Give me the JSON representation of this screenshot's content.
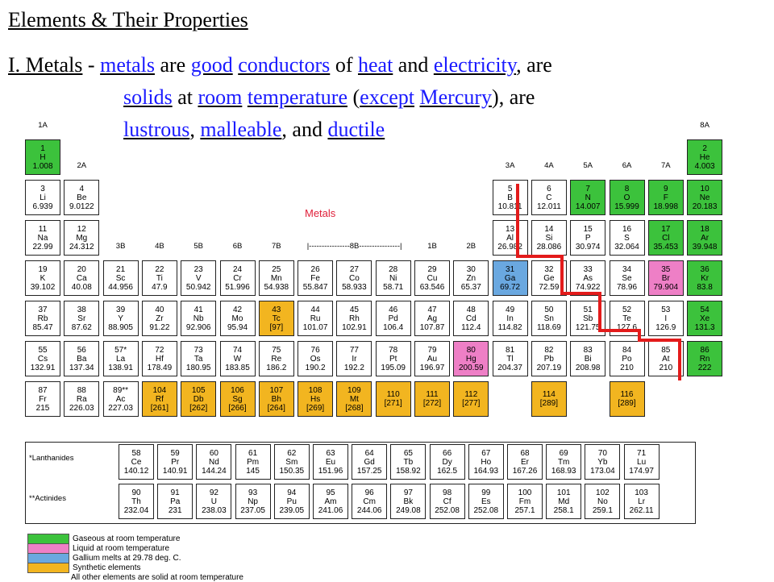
{
  "title": "Elements & Their Properties",
  "sentence": {
    "prefix": "I.  Metals",
    "dash": " - ",
    "b1": "metals",
    "t1": " are ",
    "b2": "good",
    "b3": "conductors",
    "t2": " of ",
    "b4": "heat",
    "t3": " and ",
    "b5": "electricity",
    "t4": ", are",
    "b6": "solids",
    "t5": " at ",
    "b7": "room",
    "b8": "temperature",
    "t6": " (",
    "b9": "except",
    "b10": "Mercury",
    "t7": "), are",
    "b11": "lustrous",
    "t8": ", ",
    "b12": "malleable",
    "t9": ", and ",
    "b13": "ductile"
  },
  "metals_label": "Metals",
  "colors": {
    "gas": "#3cc23c",
    "liquid": "#ee7fc6",
    "gallium": "#6aa8e0",
    "synthetic": "#f2b520",
    "staircase": "#e31b1b",
    "blank_text": "#1a1aff"
  },
  "group_labels": {
    "g1": "1A",
    "g2": "2A",
    "g13": "3A",
    "g14": "4A",
    "g15": "5A",
    "g16": "6A",
    "g17": "7A",
    "g18": "8A",
    "g3": "3B",
    "g4": "4B",
    "g5": "5B",
    "g6": "6B",
    "g7": "7B",
    "g8": "|----------------8B----------------|",
    "g11": "1B",
    "g12": "2B"
  },
  "elements": [
    {
      "n": "1",
      "s": "H",
      "m": "1.008",
      "c": "gas",
      "col": 1,
      "row": 1
    },
    {
      "n": "2",
      "s": "He",
      "m": "4.003",
      "c": "gas",
      "col": 18,
      "row": 1
    },
    {
      "n": "3",
      "s": "Li",
      "m": "6.939",
      "c": "",
      "col": 1,
      "row": 2
    },
    {
      "n": "4",
      "s": "Be",
      "m": "9.0122",
      "c": "",
      "col": 2,
      "row": 2
    },
    {
      "n": "5",
      "s": "B",
      "m": "10.811",
      "c": "",
      "col": 13,
      "row": 2
    },
    {
      "n": "6",
      "s": "C",
      "m": "12.011",
      "c": "",
      "col": 14,
      "row": 2
    },
    {
      "n": "7",
      "s": "N",
      "m": "14.007",
      "c": "gas",
      "col": 15,
      "row": 2
    },
    {
      "n": "8",
      "s": "O",
      "m": "15.999",
      "c": "gas",
      "col": 16,
      "row": 2
    },
    {
      "n": "9",
      "s": "F",
      "m": "18.998",
      "c": "gas",
      "col": 17,
      "row": 2
    },
    {
      "n": "10",
      "s": "Ne",
      "m": "20.183",
      "c": "gas",
      "col": 18,
      "row": 2
    },
    {
      "n": "11",
      "s": "Na",
      "m": "22.99",
      "c": "",
      "col": 1,
      "row": 3
    },
    {
      "n": "12",
      "s": "Mg",
      "m": "24.312",
      "c": "",
      "col": 2,
      "row": 3
    },
    {
      "n": "13",
      "s": "Al",
      "m": "26.982",
      "c": "",
      "col": 13,
      "row": 3
    },
    {
      "n": "14",
      "s": "Si",
      "m": "28.086",
      "c": "",
      "col": 14,
      "row": 3
    },
    {
      "n": "15",
      "s": "P",
      "m": "30.974",
      "c": "",
      "col": 15,
      "row": 3
    },
    {
      "n": "16",
      "s": "S",
      "m": "32.064",
      "c": "",
      "col": 16,
      "row": 3
    },
    {
      "n": "17",
      "s": "Cl",
      "m": "35.453",
      "c": "gas",
      "col": 17,
      "row": 3
    },
    {
      "n": "18",
      "s": "Ar",
      "m": "39.948",
      "c": "gas",
      "col": 18,
      "row": 3
    },
    {
      "n": "19",
      "s": "K",
      "m": "39.102",
      "c": "",
      "col": 1,
      "row": 4
    },
    {
      "n": "20",
      "s": "Ca",
      "m": "40.08",
      "c": "",
      "col": 2,
      "row": 4
    },
    {
      "n": "21",
      "s": "Sc",
      "m": "44.956",
      "c": "",
      "col": 3,
      "row": 4
    },
    {
      "n": "22",
      "s": "Ti",
      "m": "47.9",
      "c": "",
      "col": 4,
      "row": 4
    },
    {
      "n": "23",
      "s": "V",
      "m": "50.942",
      "c": "",
      "col": 5,
      "row": 4
    },
    {
      "n": "24",
      "s": "Cr",
      "m": "51.996",
      "c": "",
      "col": 6,
      "row": 4
    },
    {
      "n": "25",
      "s": "Mn",
      "m": "54.938",
      "c": "",
      "col": 7,
      "row": 4
    },
    {
      "n": "26",
      "s": "Fe",
      "m": "55.847",
      "c": "",
      "col": 8,
      "row": 4
    },
    {
      "n": "27",
      "s": "Co",
      "m": "58.933",
      "c": "",
      "col": 9,
      "row": 4
    },
    {
      "n": "28",
      "s": "Ni",
      "m": "58.71",
      "c": "",
      "col": 10,
      "row": 4
    },
    {
      "n": "29",
      "s": "Cu",
      "m": "63.546",
      "c": "",
      "col": 11,
      "row": 4
    },
    {
      "n": "30",
      "s": "Zn",
      "m": "65.37",
      "c": "",
      "col": 12,
      "row": 4
    },
    {
      "n": "31",
      "s": "Ga",
      "m": "69.72",
      "c": "gallium",
      "col": 13,
      "row": 4
    },
    {
      "n": "32",
      "s": "Ge",
      "m": "72.59",
      "c": "",
      "col": 14,
      "row": 4
    },
    {
      "n": "33",
      "s": "As",
      "m": "74.922",
      "c": "",
      "col": 15,
      "row": 4
    },
    {
      "n": "34",
      "s": "Se",
      "m": "78.96",
      "c": "",
      "col": 16,
      "row": 4
    },
    {
      "n": "35",
      "s": "Br",
      "m": "79.904",
      "c": "liquid",
      "col": 17,
      "row": 4
    },
    {
      "n": "36",
      "s": "Kr",
      "m": "83.8",
      "c": "gas",
      "col": 18,
      "row": 4
    },
    {
      "n": "37",
      "s": "Rb",
      "m": "85.47",
      "c": "",
      "col": 1,
      "row": 5
    },
    {
      "n": "38",
      "s": "Sr",
      "m": "87.62",
      "c": "",
      "col": 2,
      "row": 5
    },
    {
      "n": "39",
      "s": "Y",
      "m": "88.905",
      "c": "",
      "col": 3,
      "row": 5
    },
    {
      "n": "40",
      "s": "Zr",
      "m": "91.22",
      "c": "",
      "col": 4,
      "row": 5
    },
    {
      "n": "41",
      "s": "Nb",
      "m": "92.906",
      "c": "",
      "col": 5,
      "row": 5
    },
    {
      "n": "42",
      "s": "Mo",
      "m": "95.94",
      "c": "",
      "col": 6,
      "row": 5
    },
    {
      "n": "43",
      "s": "Tc",
      "m": "[97]",
      "c": "synthetic",
      "col": 7,
      "row": 5
    },
    {
      "n": "44",
      "s": "Ru",
      "m": "101.07",
      "c": "",
      "col": 8,
      "row": 5
    },
    {
      "n": "45",
      "s": "Rh",
      "m": "102.91",
      "c": "",
      "col": 9,
      "row": 5
    },
    {
      "n": "46",
      "s": "Pd",
      "m": "106.4",
      "c": "",
      "col": 10,
      "row": 5
    },
    {
      "n": "47",
      "s": "Ag",
      "m": "107.87",
      "c": "",
      "col": 11,
      "row": 5
    },
    {
      "n": "48",
      "s": "Cd",
      "m": "112.4",
      "c": "",
      "col": 12,
      "row": 5
    },
    {
      "n": "49",
      "s": "In",
      "m": "114.82",
      "c": "",
      "col": 13,
      "row": 5
    },
    {
      "n": "50",
      "s": "Sn",
      "m": "118.69",
      "c": "",
      "col": 14,
      "row": 5
    },
    {
      "n": "51",
      "s": "Sb",
      "m": "121.75",
      "c": "",
      "col": 15,
      "row": 5
    },
    {
      "n": "52",
      "s": "Te",
      "m": "127.6",
      "c": "",
      "col": 16,
      "row": 5
    },
    {
      "n": "53",
      "s": "I",
      "m": "126.9",
      "c": "",
      "col": 17,
      "row": 5
    },
    {
      "n": "54",
      "s": "Xe",
      "m": "131.3",
      "c": "gas",
      "col": 18,
      "row": 5
    },
    {
      "n": "55",
      "s": "Cs",
      "m": "132.91",
      "c": "",
      "col": 1,
      "row": 6
    },
    {
      "n": "56",
      "s": "Ba",
      "m": "137.34",
      "c": "",
      "col": 2,
      "row": 6
    },
    {
      "n": "57*",
      "s": "La",
      "m": "138.91",
      "c": "",
      "col": 3,
      "row": 6
    },
    {
      "n": "72",
      "s": "Hf",
      "m": "178.49",
      "c": "",
      "col": 4,
      "row": 6
    },
    {
      "n": "73",
      "s": "Ta",
      "m": "180.95",
      "c": "",
      "col": 5,
      "row": 6
    },
    {
      "n": "74",
      "s": "W",
      "m": "183.85",
      "c": "",
      "col": 6,
      "row": 6
    },
    {
      "n": "75",
      "s": "Re",
      "m": "186.2",
      "c": "",
      "col": 7,
      "row": 6
    },
    {
      "n": "76",
      "s": "Os",
      "m": "190.2",
      "c": "",
      "col": 8,
      "row": 6
    },
    {
      "n": "77",
      "s": "Ir",
      "m": "192.2",
      "c": "",
      "col": 9,
      "row": 6
    },
    {
      "n": "78",
      "s": "Pt",
      "m": "195.09",
      "c": "",
      "col": 10,
      "row": 6
    },
    {
      "n": "79",
      "s": "Au",
      "m": "196.97",
      "c": "",
      "col": 11,
      "row": 6
    },
    {
      "n": "80",
      "s": "Hg",
      "m": "200.59",
      "c": "liquid",
      "col": 12,
      "row": 6
    },
    {
      "n": "81",
      "s": "Tl",
      "m": "204.37",
      "c": "",
      "col": 13,
      "row": 6
    },
    {
      "n": "82",
      "s": "Pb",
      "m": "207.19",
      "c": "",
      "col": 14,
      "row": 6
    },
    {
      "n": "83",
      "s": "Bi",
      "m": "208.98",
      "c": "",
      "col": 15,
      "row": 6
    },
    {
      "n": "84",
      "s": "Po",
      "m": "210",
      "c": "",
      "col": 16,
      "row": 6
    },
    {
      "n": "85",
      "s": "At",
      "m": "210",
      "c": "",
      "col": 17,
      "row": 6
    },
    {
      "n": "86",
      "s": "Rn",
      "m": "222",
      "c": "gas",
      "col": 18,
      "row": 6
    },
    {
      "n": "87",
      "s": "Fr",
      "m": "215",
      "c": "",
      "col": 1,
      "row": 7
    },
    {
      "n": "88",
      "s": "Ra",
      "m": "226.03",
      "c": "",
      "col": 2,
      "row": 7
    },
    {
      "n": "89**",
      "s": "Ac",
      "m": "227.03",
      "c": "",
      "col": 3,
      "row": 7
    },
    {
      "n": "104",
      "s": "Rf",
      "m": "[261]",
      "c": "synthetic",
      "col": 4,
      "row": 7
    },
    {
      "n": "105",
      "s": "Db",
      "m": "[262]",
      "c": "synthetic",
      "col": 5,
      "row": 7
    },
    {
      "n": "106",
      "s": "Sg",
      "m": "[266]",
      "c": "synthetic",
      "col": 6,
      "row": 7
    },
    {
      "n": "107",
      "s": "Bh",
      "m": "[264]",
      "c": "synthetic",
      "col": 7,
      "row": 7
    },
    {
      "n": "108",
      "s": "Hs",
      "m": "[269]",
      "c": "synthetic",
      "col": 8,
      "row": 7
    },
    {
      "n": "109",
      "s": "Mt",
      "m": "[268]",
      "c": "synthetic",
      "col": 9,
      "row": 7
    },
    {
      "n": "110",
      "s": "",
      "m": "[271]",
      "c": "synthetic",
      "col": 10,
      "row": 7
    },
    {
      "n": "111",
      "s": "",
      "m": "[272]",
      "c": "synthetic",
      "col": 11,
      "row": 7
    },
    {
      "n": "112",
      "s": "",
      "m": "[277]",
      "c": "synthetic",
      "col": 12,
      "row": 7
    },
    {
      "n": "114",
      "s": "",
      "m": "[289]",
      "c": "synthetic",
      "col": 14,
      "row": 7
    },
    {
      "n": "116",
      "s": "",
      "m": "[289]",
      "c": "synthetic",
      "col": 16,
      "row": 7
    }
  ],
  "lanthanides_label": "*Lanthanides",
  "actinides_label": "**Actinides",
  "lanthanides": [
    {
      "n": "58",
      "s": "Ce",
      "m": "140.12"
    },
    {
      "n": "59",
      "s": "Pr",
      "m": "140.91"
    },
    {
      "n": "60",
      "s": "Nd",
      "m": "144.24"
    },
    {
      "n": "61",
      "s": "Pm",
      "m": "145"
    },
    {
      "n": "62",
      "s": "Sm",
      "m": "150.35"
    },
    {
      "n": "63",
      "s": "Eu",
      "m": "151.96"
    },
    {
      "n": "64",
      "s": "Gd",
      "m": "157.25"
    },
    {
      "n": "65",
      "s": "Tb",
      "m": "158.92"
    },
    {
      "n": "66",
      "s": "Dy",
      "m": "162.5"
    },
    {
      "n": "67",
      "s": "Ho",
      "m": "164.93"
    },
    {
      "n": "68",
      "s": "Er",
      "m": "167.26"
    },
    {
      "n": "69",
      "s": "Tm",
      "m": "168.93"
    },
    {
      "n": "70",
      "s": "Yb",
      "m": "173.04"
    },
    {
      "n": "71",
      "s": "Lu",
      "m": "174.97"
    }
  ],
  "actinides": [
    {
      "n": "90",
      "s": "Th",
      "m": "232.04"
    },
    {
      "n": "91",
      "s": "Pa",
      "m": "231"
    },
    {
      "n": "92",
      "s": "U",
      "m": "238.03"
    },
    {
      "n": "93",
      "s": "Np",
      "m": "237.05"
    },
    {
      "n": "94",
      "s": "Pu",
      "m": "239.05"
    },
    {
      "n": "95",
      "s": "Am",
      "m": "241.06"
    },
    {
      "n": "96",
      "s": "Cm",
      "m": "244.06"
    },
    {
      "n": "97",
      "s": "Bk",
      "m": "249.08"
    },
    {
      "n": "98",
      "s": "Cf",
      "m": "252.08"
    },
    {
      "n": "99",
      "s": "Es",
      "m": "252.08"
    },
    {
      "n": "100",
      "s": "Fm",
      "m": "257.1"
    },
    {
      "n": "101",
      "s": "Md",
      "m": "258.1"
    },
    {
      "n": "102",
      "s": "No",
      "m": "259.1"
    },
    {
      "n": "103",
      "s": "Lr",
      "m": "262.11"
    }
  ],
  "legend": [
    {
      "c": "gas",
      "label": "Gaseous at room temperature"
    },
    {
      "c": "liquid",
      "label": "Liquid at room temperature"
    },
    {
      "c": "gallium",
      "label": "Gallium melts at 29.78 deg. C."
    },
    {
      "c": "synthetic",
      "label": "Synthetic elements"
    },
    {
      "c": "",
      "label": "All other elements are solid at room temperature"
    }
  ]
}
